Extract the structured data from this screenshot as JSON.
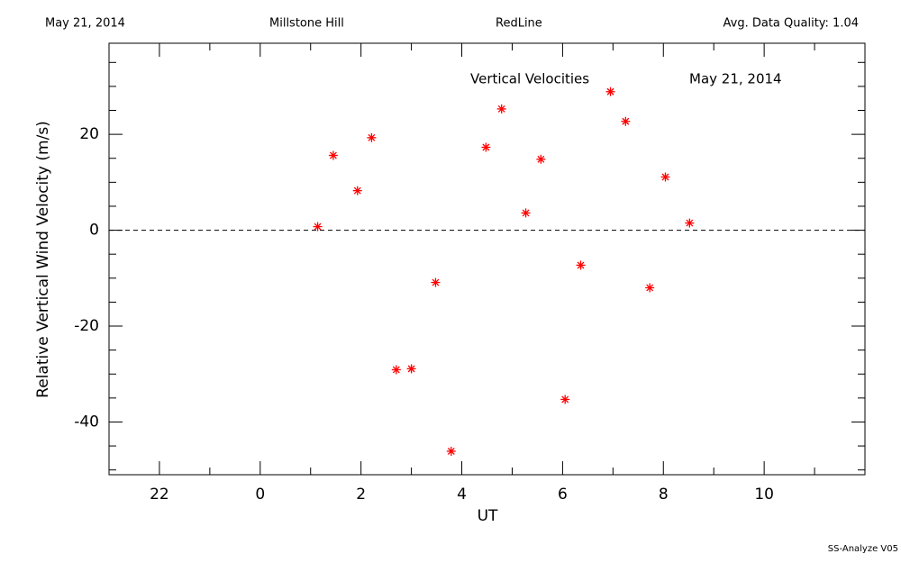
{
  "chart_data": {
    "type": "scatter",
    "header": {
      "date": "May 21, 2014",
      "site": "Millstone Hill",
      "instrument": "RedLine",
      "quality": "Avg. Data Quality: 1.04"
    },
    "annotations": [
      "Vertical Velocities",
      "May 21, 2014"
    ],
    "footer": "SS-Analyze V05",
    "xlabel": "UT",
    "ylabel": "Relative Vertical Wind Velocity (m/s)",
    "xlim": [
      -3,
      12
    ],
    "ylim": [
      -51,
      39
    ],
    "xticks": [
      {
        "value": -2,
        "label": "22"
      },
      0,
      2,
      4,
      6,
      8,
      10
    ],
    "xminorticks": [
      -1,
      1,
      3,
      5,
      7,
      9,
      11
    ],
    "yticks": [
      -40,
      -20,
      0,
      20
    ],
    "yminorticks": [
      -50,
      -45,
      -35,
      -30,
      -25,
      -15,
      -10,
      -5,
      5,
      10,
      15,
      25,
      30,
      35
    ],
    "reference_line": 0,
    "color": "#ff0000",
    "x": [
      1.14,
      1.45,
      1.93,
      2.21,
      2.7,
      3.0,
      3.48,
      3.79,
      4.48,
      4.79,
      5.27,
      5.57,
      6.05,
      6.36,
      6.95,
      7.25,
      7.73,
      8.04,
      8.52
    ],
    "values": [
      0.75,
      15.6,
      8.25,
      19.3,
      -29.1,
      -28.9,
      -10.9,
      -46.1,
      17.3,
      25.3,
      3.6,
      14.8,
      -35.3,
      -7.3,
      28.9,
      22.7,
      -12.0,
      11.1,
      1.5
    ]
  }
}
